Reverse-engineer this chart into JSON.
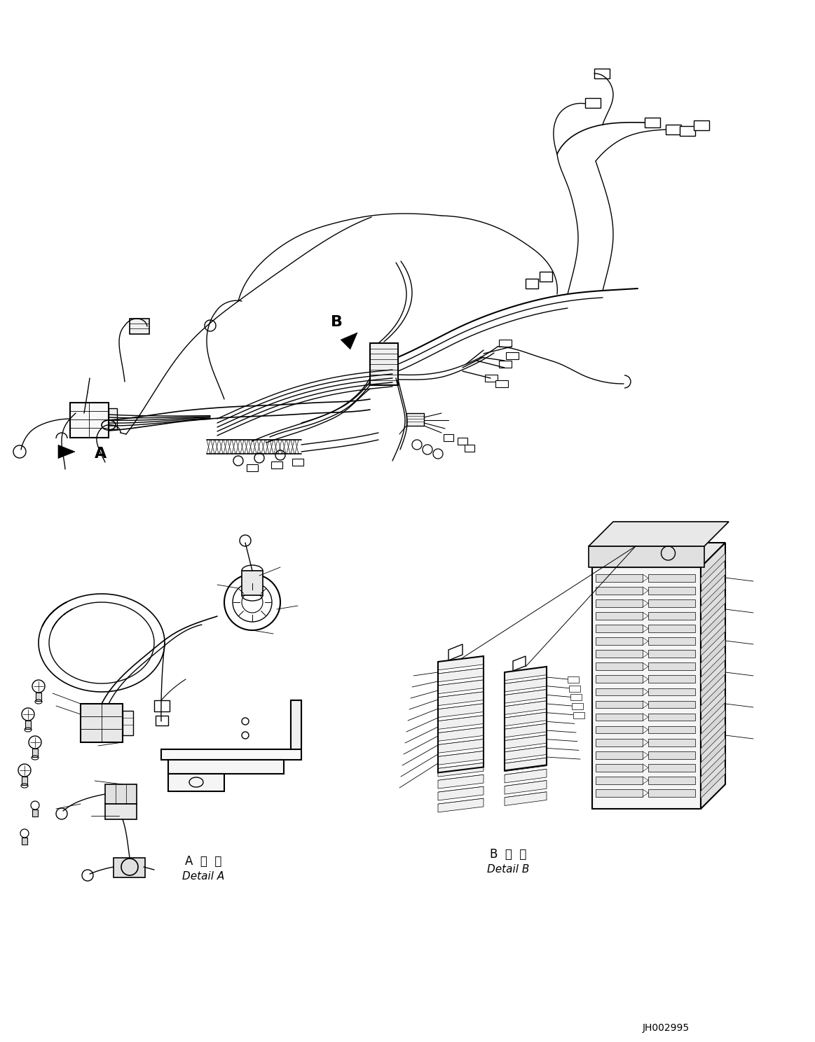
{
  "background_color": "#ffffff",
  "fig_width": 11.63,
  "fig_height": 14.88,
  "dpi": 100,
  "label_A_japanese": "A 詳細",
  "label_A_english": "Detail A",
  "label_B_japanese": "B 詳細",
  "label_B_english": "Detail B",
  "code": "JH002995",
  "line_color": "#000000"
}
